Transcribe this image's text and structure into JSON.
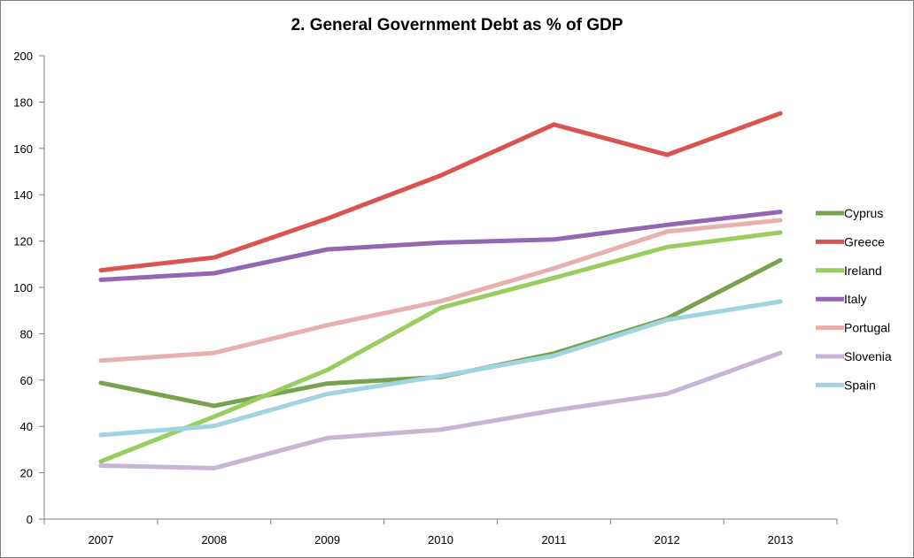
{
  "chart_data": {
    "type": "line",
    "title": "2. General Government Debt as % of GDP",
    "xlabel": "",
    "ylabel": "",
    "categories": [
      "2007",
      "2008",
      "2009",
      "2010",
      "2011",
      "2012",
      "2013"
    ],
    "ylim": [
      0,
      200
    ],
    "yticks": [
      0,
      20,
      40,
      60,
      80,
      100,
      120,
      140,
      160,
      180,
      200
    ],
    "grid": false,
    "legend_position": "right",
    "series": [
      {
        "name": "Cyprus",
        "color": "#77a350",
        "values": [
          58.8,
          48.9,
          58.5,
          61.3,
          71.5,
          86.6,
          111.7
        ]
      },
      {
        "name": "Greece",
        "color": "#d9534f",
        "values": [
          107.4,
          112.9,
          129.7,
          148.3,
          170.3,
          157.2,
          175.1
        ]
      },
      {
        "name": "Ireland",
        "color": "#9acd5f",
        "values": [
          24.9,
          44.2,
          64.4,
          91.2,
          104.1,
          117.4,
          123.7
        ]
      },
      {
        "name": "Italy",
        "color": "#9467b5",
        "values": [
          103.3,
          106.1,
          116.4,
          119.3,
          120.7,
          127.0,
          132.6
        ]
      },
      {
        "name": "Portugal",
        "color": "#e8b0ae",
        "values": [
          68.4,
          71.7,
          83.7,
          94.0,
          108.2,
          124.1,
          129.0
        ]
      },
      {
        "name": "Slovenia",
        "color": "#c7b5d4",
        "values": [
          23.1,
          22.0,
          35.0,
          38.6,
          46.9,
          54.1,
          71.7
        ]
      },
      {
        "name": "Spain",
        "color": "#9fd4e0",
        "values": [
          36.3,
          40.2,
          54.0,
          61.7,
          70.5,
          86.0,
          93.9
        ]
      }
    ]
  }
}
